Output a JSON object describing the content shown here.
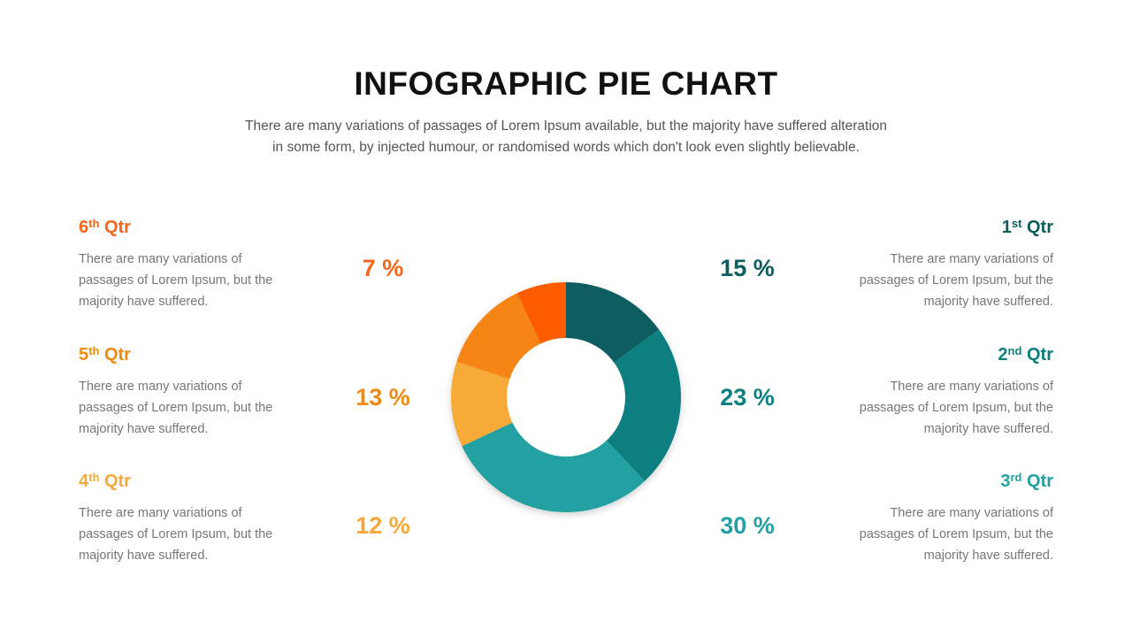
{
  "header": {
    "title": "INFOGRAPHIC PIE CHART",
    "subtitle_line1": "There are many variations of passages of Lorem Ipsum available, but the majority have suffered alteration",
    "subtitle_line2": "in some form, by injected humour, or randomised words which don't look even slightly believable."
  },
  "colors": {
    "q1": "#0d5c5e",
    "q2": "#0e7f81",
    "q3": "#24a0a2",
    "q4": "#f8aa38",
    "q5": "#f68512",
    "q6": "#fd5d00"
  },
  "quarters": [
    {
      "num": "1",
      "sup": "st",
      "suffix": " Qtr",
      "pct": "15 %",
      "desc": [
        "There are many variations of",
        "passages of Lorem Ipsum, but the",
        "majority  have suffered."
      ]
    },
    {
      "num": "2",
      "sup": "nd",
      "suffix": " Qtr",
      "pct": "23 %",
      "desc": [
        "There are many variations of",
        "passages of Lorem Ipsum, but the",
        "majority  have suffered."
      ]
    },
    {
      "num": "3",
      "sup": "rd",
      "suffix": " Qtr",
      "pct": "30 %",
      "desc": [
        "There are many variations of",
        "passages of Lorem Ipsum, but the",
        "majority  have suffered."
      ]
    },
    {
      "num": "4",
      "sup": "th",
      "suffix": " Qtr",
      "pct": "12 %",
      "desc": [
        "There are many variations of",
        "passages of Lorem Ipsum, but the",
        "majority  have suffered."
      ]
    },
    {
      "num": "5",
      "sup": "th",
      "suffix": " Qtr",
      "pct": "13 %",
      "desc": [
        "There are many variations of",
        "passages of Lorem Ipsum, but the",
        "majority  have suffered."
      ]
    },
    {
      "num": "6",
      "sup": "th",
      "suffix": " Qtr",
      "pct": "7 %",
      "desc": [
        "There are many variations of",
        "passages of Lorem Ipsum, but the",
        "majority  have suffered."
      ]
    }
  ],
  "chart_data": {
    "type": "pie",
    "categories": [
      "1st Qtr",
      "2nd Qtr",
      "3rd Qtr",
      "4th Qtr",
      "5th Qtr",
      "6th Qtr"
    ],
    "values": [
      15,
      23,
      30,
      12,
      13,
      7
    ],
    "unit": "%",
    "donut": true,
    "colors": [
      "#0d5c5e",
      "#0e7f81",
      "#24a0a2",
      "#f8aa38",
      "#f68512",
      "#fd5d00"
    ]
  }
}
